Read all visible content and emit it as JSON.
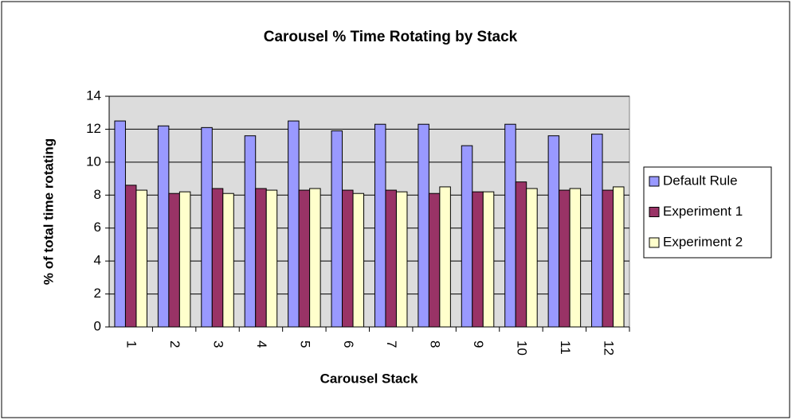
{
  "chart_data": {
    "type": "bar",
    "title": "Carousel % Time Rotating by Stack",
    "x_label": "Carousel Stack",
    "y_label": "% of total time rotating",
    "categories": [
      "1",
      "2",
      "3",
      "4",
      "5",
      "6",
      "7",
      "8",
      "9",
      "10",
      "11",
      "12"
    ],
    "series": [
      {
        "name": "Default Rule",
        "color": "#9999ff",
        "values": [
          12.5,
          12.2,
          12.1,
          11.6,
          12.5,
          11.9,
          12.3,
          12.3,
          11.0,
          12.3,
          11.6,
          11.7
        ]
      },
      {
        "name": "Experiment 1",
        "color": "#993366",
        "values": [
          8.6,
          8.1,
          8.4,
          8.4,
          8.3,
          8.3,
          8.3,
          8.1,
          8.2,
          8.8,
          8.3,
          8.3
        ]
      },
      {
        "name": "Experiment 2",
        "color": "#ffffcc",
        "values": [
          8.3,
          8.2,
          8.1,
          8.3,
          8.4,
          8.1,
          8.2,
          8.5,
          8.2,
          8.4,
          8.4,
          8.5
        ]
      }
    ],
    "ylim": [
      0,
      14
    ],
    "yticks": [
      0,
      2,
      4,
      6,
      8,
      10,
      12,
      14
    ],
    "grid": true,
    "legend": "right"
  }
}
